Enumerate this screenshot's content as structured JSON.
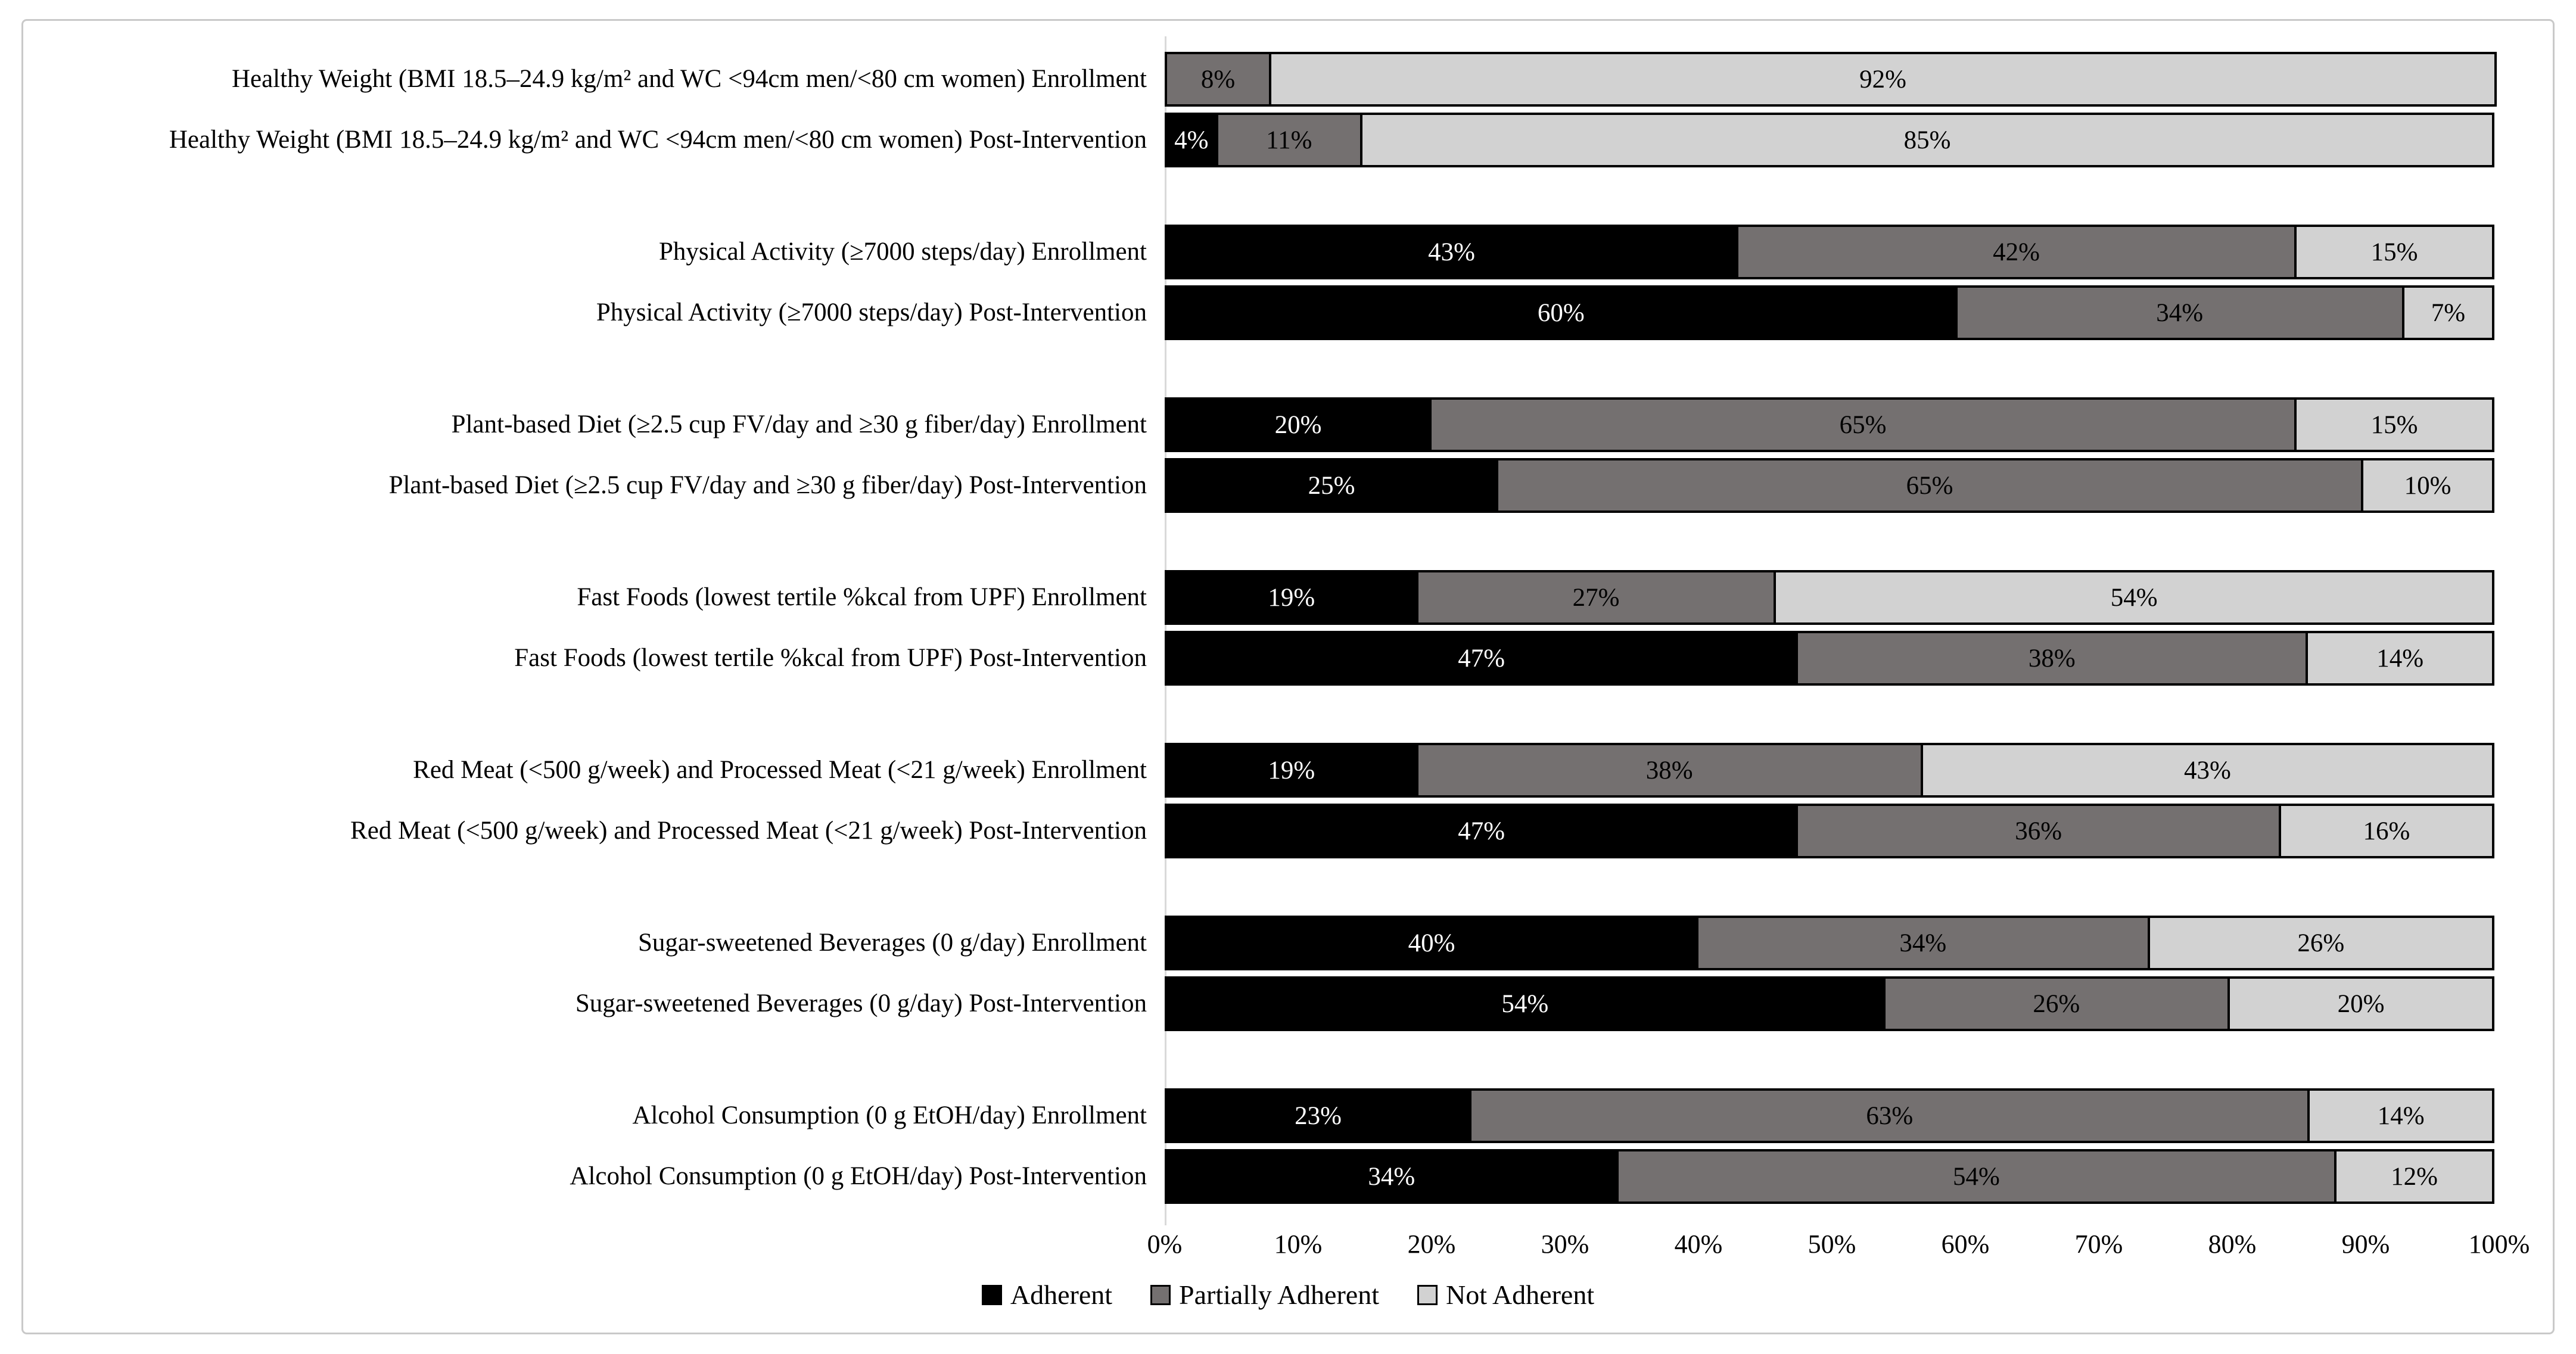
{
  "figure": {
    "background_color": "#ffffff",
    "border_color": "#c9c9c9",
    "axis_line_color": "#d9d9d9"
  },
  "chart_data": {
    "type": "bar",
    "orientation": "horizontal",
    "stacked": true,
    "unit": "percent",
    "xlim": [
      0,
      100
    ],
    "grid": "off",
    "x_ticks": [
      "0%",
      "10%",
      "20%",
      "30%",
      "40%",
      "50%",
      "60%",
      "70%",
      "80%",
      "90%",
      "100%"
    ],
    "series": [
      {
        "label": "Adherent",
        "color": "#000000",
        "text_color": "#ffffff"
      },
      {
        "label": "Partially Adherent",
        "color": "#747070",
        "text_color": "#000000"
      },
      {
        "label": "Not Adherent",
        "color": "#d2d2d2",
        "text_color": "#000000"
      }
    ],
    "legend_position": "bottom-center",
    "groups": [
      {
        "rows": [
          {
            "label": "Healthy Weight (BMI 18.5–24.9 kg/m² and WC <94cm men/<80 cm women) Enrollment",
            "values": [
              0,
              8,
              92
            ],
            "value_labels": [
              "",
              "8%",
              "92%"
            ]
          },
          {
            "label": "Healthy Weight (BMI 18.5–24.9 kg/m² and WC <94cm men/<80 cm women) Post-Intervention",
            "values": [
              4,
              11,
              85
            ],
            "value_labels": [
              "4%",
              "11%",
              "85%"
            ]
          }
        ]
      },
      {
        "rows": [
          {
            "label": "Physical Activity (≥7000 steps/day) Enrollment",
            "values": [
              43,
              42,
              15
            ],
            "value_labels": [
              "43%",
              "42%",
              "15%"
            ]
          },
          {
            "label": "Physical Activity (≥7000 steps/day) Post-Intervention",
            "values": [
              60,
              34,
              7
            ],
            "value_labels": [
              "60%",
              "34%",
              "7%"
            ]
          }
        ]
      },
      {
        "rows": [
          {
            "label": "Plant-based Diet (≥2.5 cup FV/day and ≥30 g fiber/day) Enrollment",
            "values": [
              20,
              65,
              15
            ],
            "value_labels": [
              "20%",
              "65%",
              "15%"
            ]
          },
          {
            "label": "Plant-based Diet (≥2.5 cup FV/day and ≥30 g fiber/day) Post-Intervention",
            "values": [
              25,
              65,
              10
            ],
            "value_labels": [
              "25%",
              "65%",
              "10%"
            ]
          }
        ]
      },
      {
        "rows": [
          {
            "label": "Fast Foods (lowest tertile %kcal from UPF) Enrollment",
            "values": [
              19,
              27,
              54
            ],
            "value_labels": [
              "19%",
              "27%",
              "54%"
            ]
          },
          {
            "label": "Fast Foods (lowest tertile %kcal from UPF) Post-Intervention",
            "values": [
              47,
              38,
              14
            ],
            "value_labels": [
              "47%",
              "38%",
              "14%"
            ]
          }
        ]
      },
      {
        "rows": [
          {
            "label": "Red Meat (<500 g/week) and Processed Meat (<21 g/week) Enrollment",
            "values": [
              19,
              38,
              43
            ],
            "value_labels": [
              "19%",
              "38%",
              "43%"
            ]
          },
          {
            "label": "Red Meat (<500 g/week) and Processed Meat (<21 g/week) Post-Intervention",
            "values": [
              47,
              36,
              16
            ],
            "value_labels": [
              "47%",
              "36%",
              "16%"
            ]
          }
        ]
      },
      {
        "rows": [
          {
            "label": "Sugar-sweetened Beverages (0 g/day) Enrollment",
            "values": [
              40,
              34,
              26
            ],
            "value_labels": [
              "40%",
              "34%",
              "26%"
            ]
          },
          {
            "label": "Sugar-sweetened Beverages (0 g/day) Post-Intervention",
            "values": [
              54,
              26,
              20
            ],
            "value_labels": [
              "54%",
              "26%",
              "20%"
            ]
          }
        ]
      },
      {
        "rows": [
          {
            "label": "Alcohol Consumption (0 g EtOH/day) Enrollment",
            "values": [
              23,
              63,
              14
            ],
            "value_labels": [
              "23%",
              "63%",
              "14%"
            ]
          },
          {
            "label": "Alcohol Consumption (0 g EtOH/day) Post-Intervention",
            "values": [
              34,
              54,
              12
            ],
            "value_labels": [
              "34%",
              "54%",
              "12%"
            ]
          }
        ]
      }
    ]
  }
}
